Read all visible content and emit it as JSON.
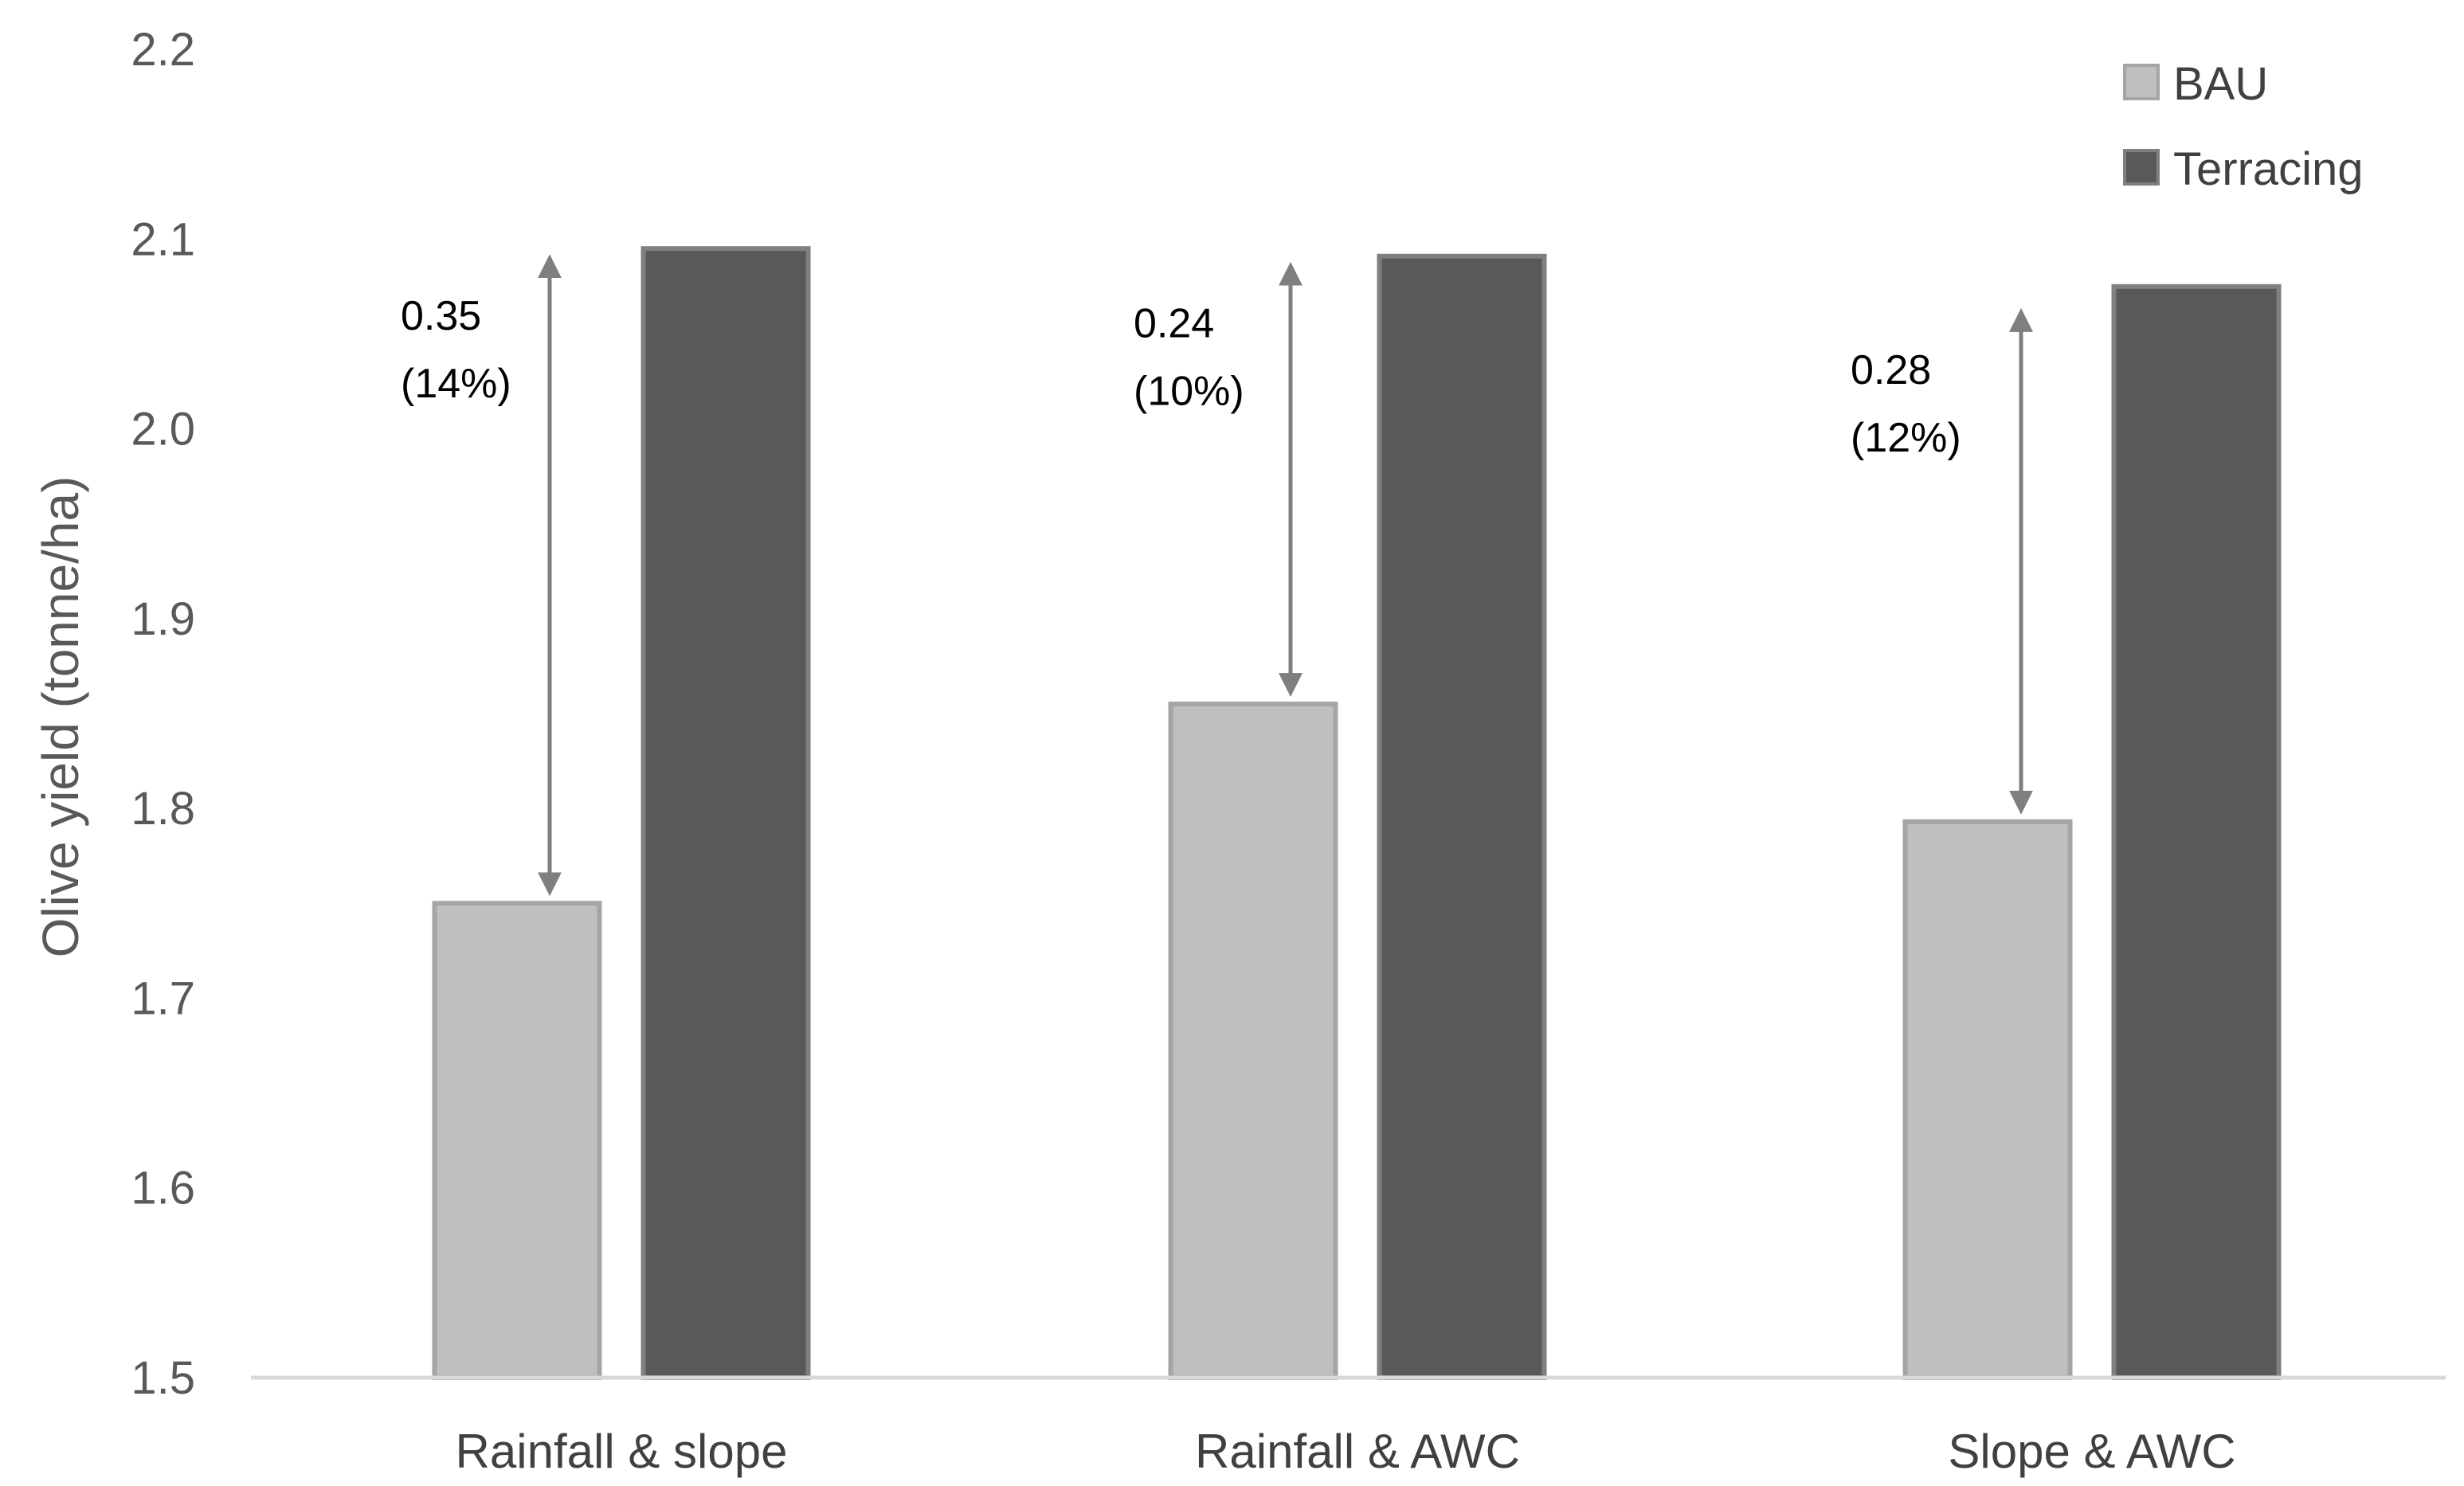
{
  "chart_data": {
    "type": "bar",
    "title": "",
    "xlabel": "",
    "ylabel": "Olive yield (tonne/ha)",
    "ylim": [
      1.5,
      2.2
    ],
    "yticks": [
      "1.5",
      "1.6",
      "1.7",
      "1.8",
      "1.9",
      "2.0",
      "2.1",
      "2.2"
    ],
    "grid": false,
    "legend_position": "top-right",
    "categories": [
      "Rainfall & slope",
      "Rainfall & AWC",
      "Slope & AWC"
    ],
    "series": [
      {
        "name": "BAU",
        "values": [
          1.75,
          1.855,
          1.793
        ],
        "color": "#bfbfbf",
        "edge": "#a5a5a5"
      },
      {
        "name": "Terracing",
        "values": [
          2.095,
          2.091,
          2.075
        ],
        "color": "#595959",
        "edge": "#7f7f7f"
      }
    ],
    "annotations": [
      {
        "category": "Rainfall & slope",
        "difference": "0.35",
        "percent": "(14%)"
      },
      {
        "category": "Rainfall & AWC",
        "difference": "0.24",
        "percent": "(10%)"
      },
      {
        "category": "Slope & AWC",
        "difference": "0.28",
        "percent": "(12%)"
      }
    ],
    "colors": {
      "axis": "#d9d9d9",
      "arrow": "#7f7f7f"
    }
  }
}
